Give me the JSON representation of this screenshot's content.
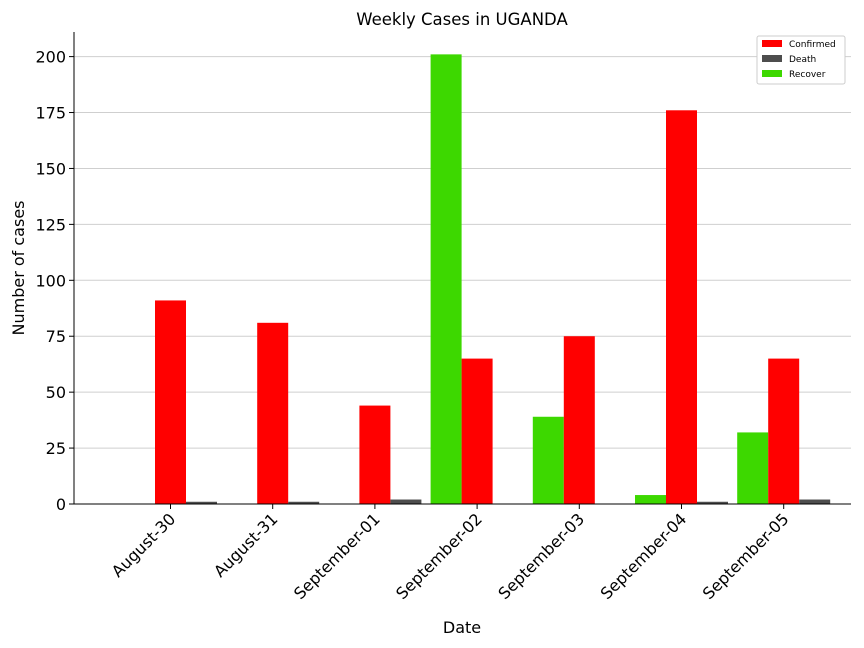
{
  "chart_data": {
    "type": "bar",
    "title": "Weekly Cases in UGANDA",
    "xlabel": "Date",
    "ylabel": "Number of cases",
    "ylim": [
      0,
      211
    ],
    "yticks": [
      0,
      25,
      50,
      75,
      100,
      125,
      150,
      175,
      200
    ],
    "grid": "horizontal",
    "legend_position": "top-right",
    "categories": [
      "August-30",
      "August-31",
      "September-01",
      "September-02",
      "September-03",
      "September-04",
      "September-05"
    ],
    "series": [
      {
        "name": "Confirmed",
        "color": "#ff0000",
        "values": [
          91,
          81,
          44,
          65,
          75,
          176,
          65
        ]
      },
      {
        "name": "Death",
        "color": "#4d4d4d",
        "values": [
          1,
          1,
          2,
          0,
          0,
          1,
          2
        ]
      },
      {
        "name": "Recover",
        "color": "#3dd800",
        "values": [
          0,
          0,
          0,
          201,
          39,
          4,
          32
        ]
      }
    ]
  }
}
